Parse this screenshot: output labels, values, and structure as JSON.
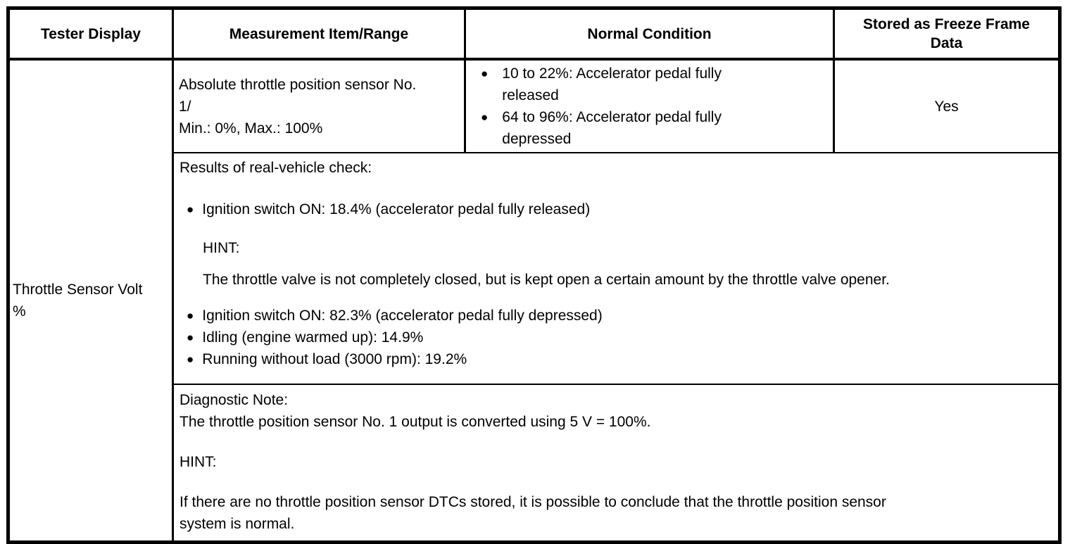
{
  "table": {
    "headers": [
      {
        "label": "Tester Display"
      },
      {
        "label": "Measurement Item/Range"
      },
      {
        "label": "Normal Condition"
      },
      {
        "label": "Stored as Freeze Frame\nData"
      }
    ],
    "bullet_glyph": "●",
    "tester_display": "Throttle Sensor Volt\n%",
    "row1": {
      "measurement": "Absolute throttle position sensor No.\n1/\nMin.: 0%, Max.: 100%",
      "normal_condition_items": [
        {
          "text": "10 to 22%: Accelerator pedal fully\nreleased"
        },
        {
          "text": "64 to 96%: Accelerator pedal fully\ndepressed"
        }
      ],
      "freeze_frame": "Yes"
    },
    "row2": {
      "intro": "Results of real-vehicle check:",
      "bullet1": "Ignition switch ON: 18.4% (accelerator pedal fully released)",
      "hint_label": "HINT:",
      "hint_text": "The throttle valve is not completely closed, but is kept open a certain amount by the throttle valve opener.",
      "bullet2": "Ignition switch ON: 82.3% (accelerator pedal fully depressed)",
      "bullet3": "Idling (engine warmed up): 14.9%",
      "bullet4": "Running without load (3000 rpm): 19.2%"
    },
    "row3": {
      "note_label": "Diagnostic Note:",
      "note_text": "The throttle position sensor No. 1 output is converted using 5 V = 100%.",
      "hint_label": "HINT:",
      "hint_text": "If there are no throttle position sensor DTCs stored, it is possible to conclude that the throttle position sensor\nsystem is normal."
    }
  }
}
